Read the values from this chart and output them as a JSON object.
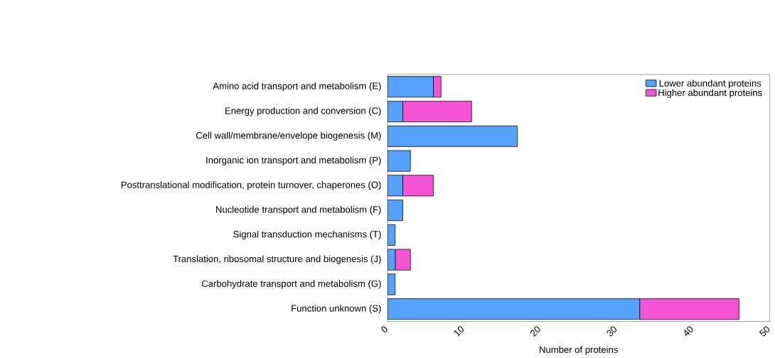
{
  "chart_data": {
    "type": "bar",
    "orientation": "horizontal",
    "stacked": true,
    "xlabel": "Number of proteins",
    "categories": [
      "Amino acid transport and metabolism (E)",
      "Energy production and conversion (C)",
      "Cell wall/membrane/envelope biogenesis (M)",
      "Inorganic ion transport and metabolism (P)",
      "Posttranslational modification, protein turnover, chaperones (O)",
      "Nucleotide transport and metabolism (F)",
      "Signal transduction mechanisms (T)",
      "Translation, ribosomal structure and biogenesis (J)",
      "Carbohydrate transport and metabolism (G)",
      "Function unknown (S)"
    ],
    "series": [
      {
        "name": "Lower abundant proteins",
        "color": "#55a1fb",
        "values": [
          6,
          2,
          17,
          3,
          2,
          2,
          1,
          1,
          1,
          33
        ]
      },
      {
        "name": "Higher abundant proteins",
        "color": "#f553d6",
        "values": [
          1,
          9,
          0,
          0,
          4,
          0,
          0,
          2,
          0,
          13
        ]
      }
    ],
    "xlim": [
      0,
      50
    ],
    "xticks": [
      0,
      10,
      20,
      30,
      40,
      50
    ],
    "grid": false,
    "legend": "top right"
  }
}
